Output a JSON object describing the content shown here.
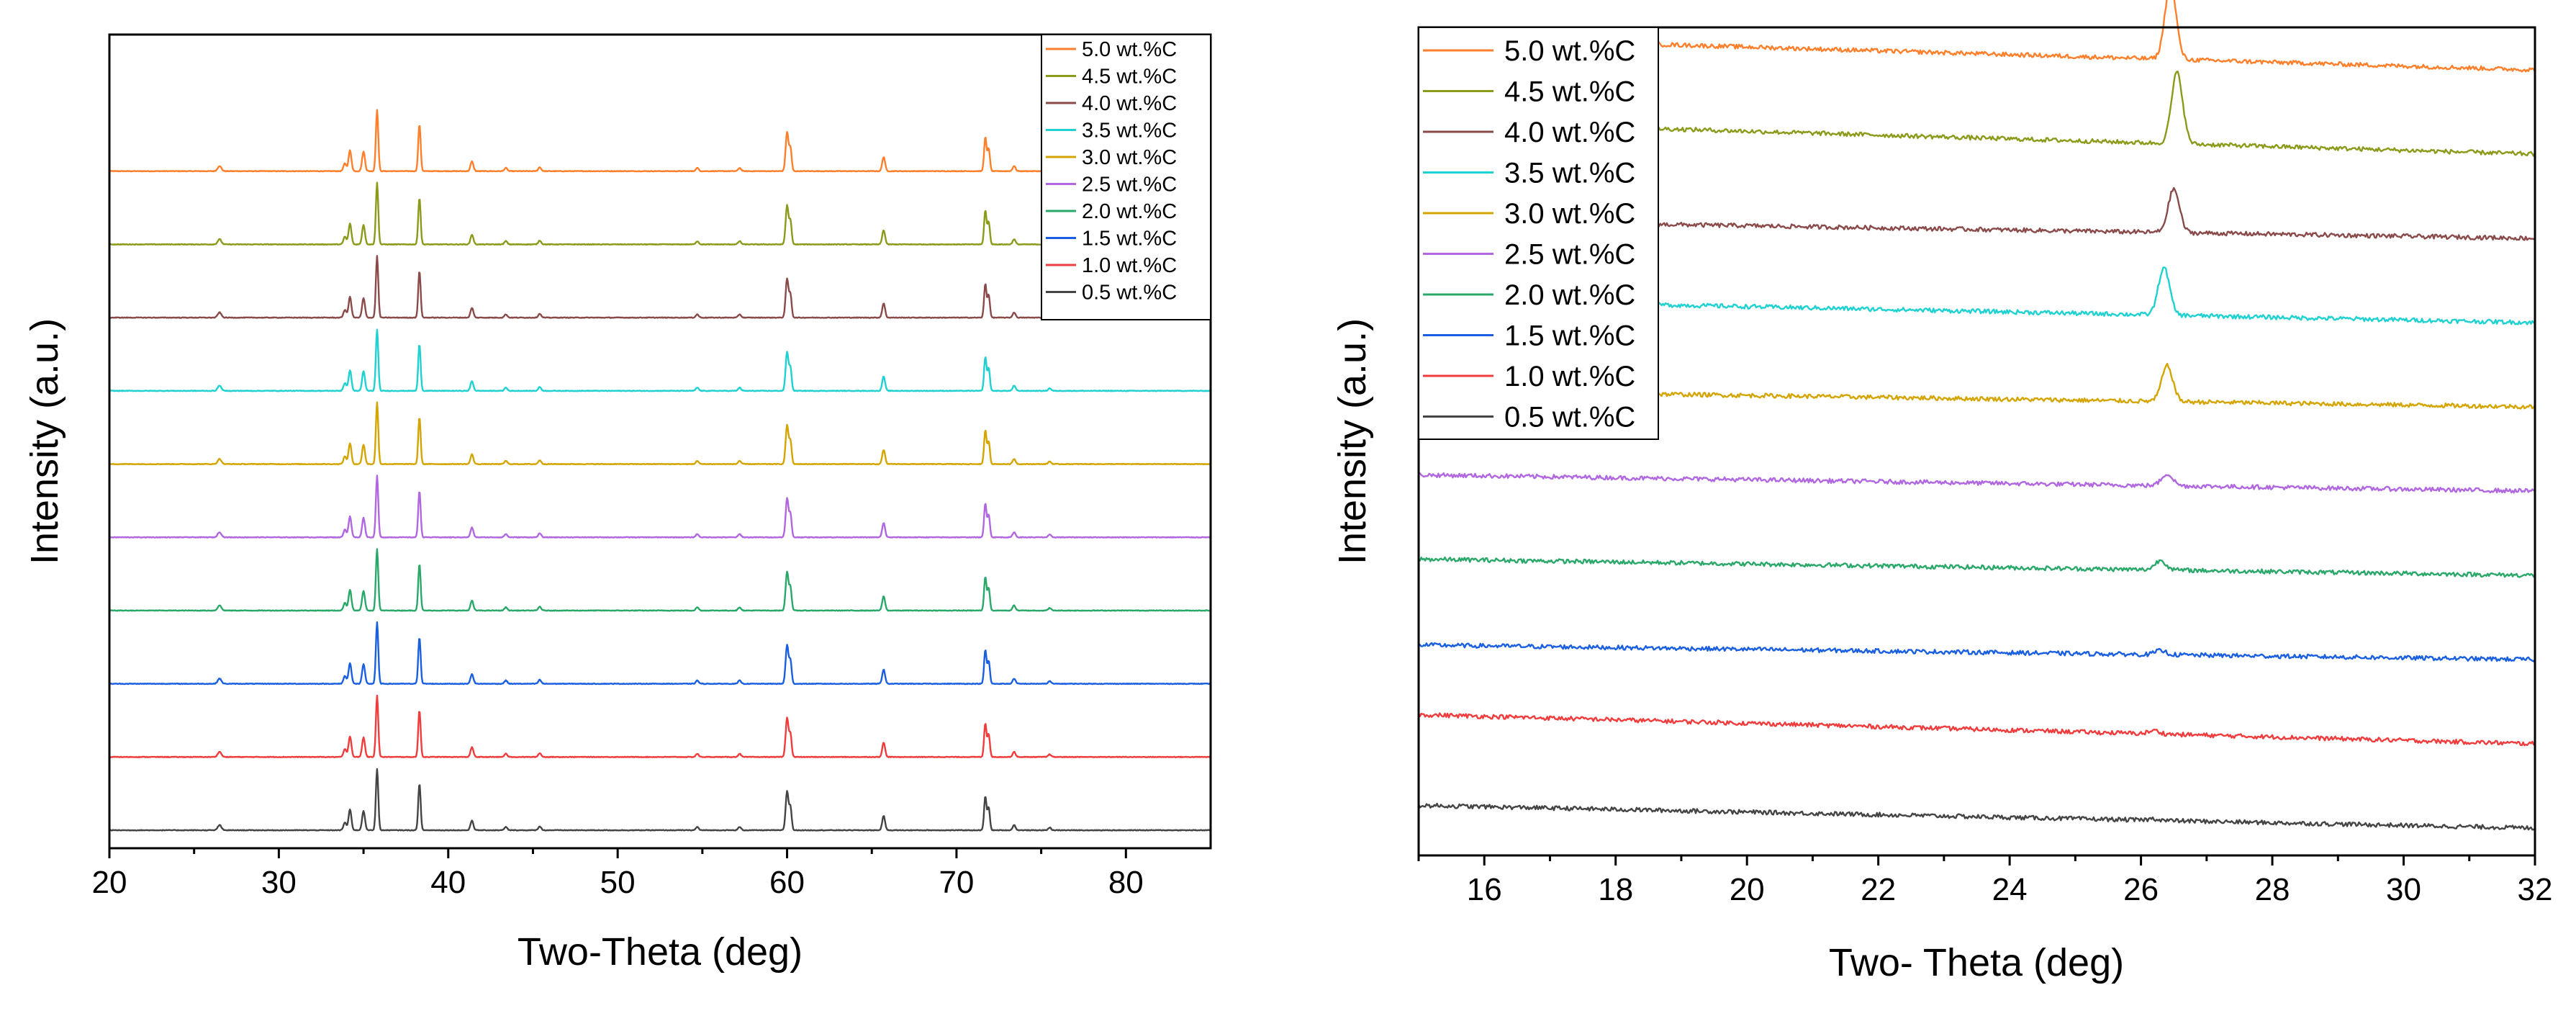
{
  "chart_data": [
    {
      "id": "full",
      "type": "line",
      "title": "",
      "xlabel": "Two-Theta (deg)",
      "ylabel": "Intensity (a.u.)",
      "xlim": [
        20,
        85
      ],
      "xticks": [
        20,
        30,
        40,
        50,
        60,
        70,
        80
      ],
      "y_ticks_shown": false,
      "legend_position": "top-right",
      "series": [
        {
          "name": "5.0 wt.%C",
          "color": "#ff7f2a"
        },
        {
          "name": "4.5 wt.%C",
          "color": "#8c9a1a"
        },
        {
          "name": "4.0 wt.%C",
          "color": "#8b4a4a"
        },
        {
          "name": "3.5 wt.%C",
          "color": "#1fd1d1"
        },
        {
          "name": "3.0 wt.%C",
          "color": "#d4a500"
        },
        {
          "name": "2.5 wt.%C",
          "color": "#b067e0"
        },
        {
          "name": "2.0 wt.%C",
          "color": "#2aa86a"
        },
        {
          "name": "1.5 wt.%C",
          "color": "#1a5fe0"
        },
        {
          "name": "1.0 wt.%C",
          "color": "#f03c3c"
        },
        {
          "name": "0.5 wt.%C",
          "color": "#444444"
        }
      ],
      "offsets": [
        9,
        8,
        7,
        6,
        5,
        4,
        3,
        2,
        1,
        0
      ],
      "peaks": [
        {
          "x": 26.5,
          "h": 0.08,
          "w": 0.15
        },
        {
          "x": 33.9,
          "h": 0.12,
          "w": 0.12
        },
        {
          "x": 34.2,
          "h": 0.32,
          "w": 0.12
        },
        {
          "x": 35.0,
          "h": 0.3,
          "w": 0.12
        },
        {
          "x": 35.8,
          "h": 0.95,
          "w": 0.1
        },
        {
          "x": 38.3,
          "h": 0.72,
          "w": 0.1
        },
        {
          "x": 41.4,
          "h": 0.15,
          "w": 0.12
        },
        {
          "x": 43.4,
          "h": 0.05,
          "w": 0.12
        },
        {
          "x": 45.4,
          "h": 0.06,
          "w": 0.12
        },
        {
          "x": 54.7,
          "h": 0.05,
          "w": 0.12
        },
        {
          "x": 57.2,
          "h": 0.05,
          "w": 0.12
        },
        {
          "x": 60.0,
          "h": 0.6,
          "w": 0.12
        },
        {
          "x": 60.2,
          "h": 0.35,
          "w": 0.1
        },
        {
          "x": 65.7,
          "h": 0.22,
          "w": 0.12
        },
        {
          "x": 71.7,
          "h": 0.52,
          "w": 0.1
        },
        {
          "x": 71.9,
          "h": 0.35,
          "w": 0.1
        },
        {
          "x": 73.4,
          "h": 0.08,
          "w": 0.12
        },
        {
          "x": 75.5,
          "h": 0.04,
          "w": 0.12
        }
      ]
    },
    {
      "id": "zoom",
      "type": "line",
      "title": "",
      "xlabel": "Two- Theta (deg)",
      "ylabel": "Intensity (a.u.)",
      "xlim": [
        15,
        32
      ],
      "xticks": [
        16,
        18,
        20,
        22,
        24,
        26,
        28,
        30,
        32
      ],
      "y_ticks_shown": false,
      "legend_position": "top-left",
      "series": [
        {
          "name": "5.0 wt.%C",
          "color": "#ff7f2a",
          "peak_x": 26.45,
          "peak_h": 0.95
        },
        {
          "name": "4.5 wt.%C",
          "color": "#8c9a1a",
          "peak_x": 26.55,
          "peak_h": 0.9
        },
        {
          "name": "4.0 wt.%C",
          "color": "#8b4a4a",
          "peak_x": 26.5,
          "peak_h": 0.55
        },
        {
          "name": "3.5 wt.%C",
          "color": "#1fd1d1",
          "peak_x": 26.35,
          "peak_h": 0.6
        },
        {
          "name": "3.0 wt.%C",
          "color": "#d4a500",
          "peak_x": 26.4,
          "peak_h": 0.45
        },
        {
          "name": "2.5 wt.%C",
          "color": "#b067e0",
          "peak_x": 26.4,
          "peak_h": 0.15
        },
        {
          "name": "2.0 wt.%C",
          "color": "#2aa86a",
          "peak_x": 26.3,
          "peak_h": 0.12
        },
        {
          "name": "1.5 wt.%C",
          "color": "#1a5fe0",
          "peak_x": 26.3,
          "peak_h": 0.05
        },
        {
          "name": "1.0 wt.%C",
          "color": "#f03c3c",
          "peak_x": 26.2,
          "peak_h": 0.04
        },
        {
          "name": "0.5 wt.%C",
          "color": "#444444",
          "peak_x": 26.2,
          "peak_h": 0.02
        }
      ],
      "baseline_start": [
        1.0,
        1.0,
        0.55,
        0.7,
        0.5,
        0.5,
        0.5,
        0.45,
        0.9,
        0.7
      ],
      "baseline_end": [
        0.0,
        0.0,
        0.0,
        0.0,
        0.0,
        0.0,
        0.0,
        0.0,
        0.0,
        0.0
      ],
      "offsets": [
        9,
        8,
        7,
        6,
        5,
        4,
        3,
        2,
        1,
        0
      ]
    }
  ]
}
